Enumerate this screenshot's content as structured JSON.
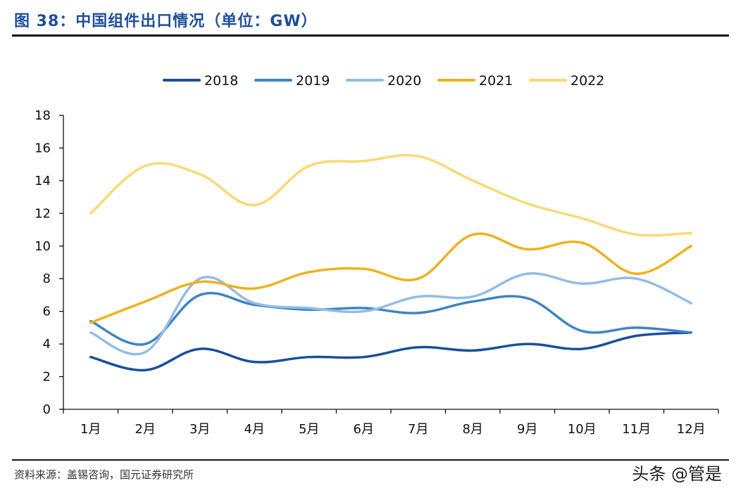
{
  "header": {
    "title": "图 38：中国组件出口情况（单位：GW）"
  },
  "footer": {
    "source": "资料来源：盖锡咨询，国元证券研究所",
    "watermark": "头条 @管是"
  },
  "chart_data": {
    "type": "line",
    "title": "",
    "xlabel": "",
    "ylabel": "",
    "categories": [
      "1月",
      "2月",
      "3月",
      "4月",
      "5月",
      "6月",
      "7月",
      "8月",
      "9月",
      "10月",
      "11月",
      "12月"
    ],
    "ylim": [
      0,
      18
    ],
    "yticks": [
      0,
      2,
      4,
      6,
      8,
      10,
      12,
      14,
      16,
      18
    ],
    "grid": false,
    "legend_position": "top",
    "series": [
      {
        "name": "2018",
        "color": "#1b4f9c",
        "values": [
          3.2,
          2.4,
          3.7,
          2.9,
          3.2,
          3.2,
          3.8,
          3.6,
          4.0,
          3.7,
          4.5,
          4.7
        ]
      },
      {
        "name": "2019",
        "color": "#3d85c6",
        "values": [
          5.4,
          4.0,
          7.0,
          6.4,
          6.1,
          6.2,
          5.9,
          6.6,
          6.8,
          4.8,
          5.0,
          4.7
        ]
      },
      {
        "name": "2020",
        "color": "#93bde4",
        "values": [
          4.7,
          3.5,
          8.0,
          6.5,
          6.2,
          6.0,
          6.9,
          6.9,
          8.3,
          7.7,
          8.0,
          6.5
        ]
      },
      {
        "name": "2021",
        "color": "#efb11d",
        "values": [
          5.3,
          6.6,
          7.8,
          7.4,
          8.4,
          8.6,
          8.0,
          10.7,
          9.8,
          10.2,
          8.3,
          10.0
        ]
      },
      {
        "name": "2022",
        "color": "#fcd874",
        "values": [
          12.0,
          14.9,
          14.4,
          12.5,
          14.9,
          15.2,
          15.5,
          14.0,
          12.6,
          11.7,
          10.7,
          10.8
        ]
      }
    ]
  }
}
